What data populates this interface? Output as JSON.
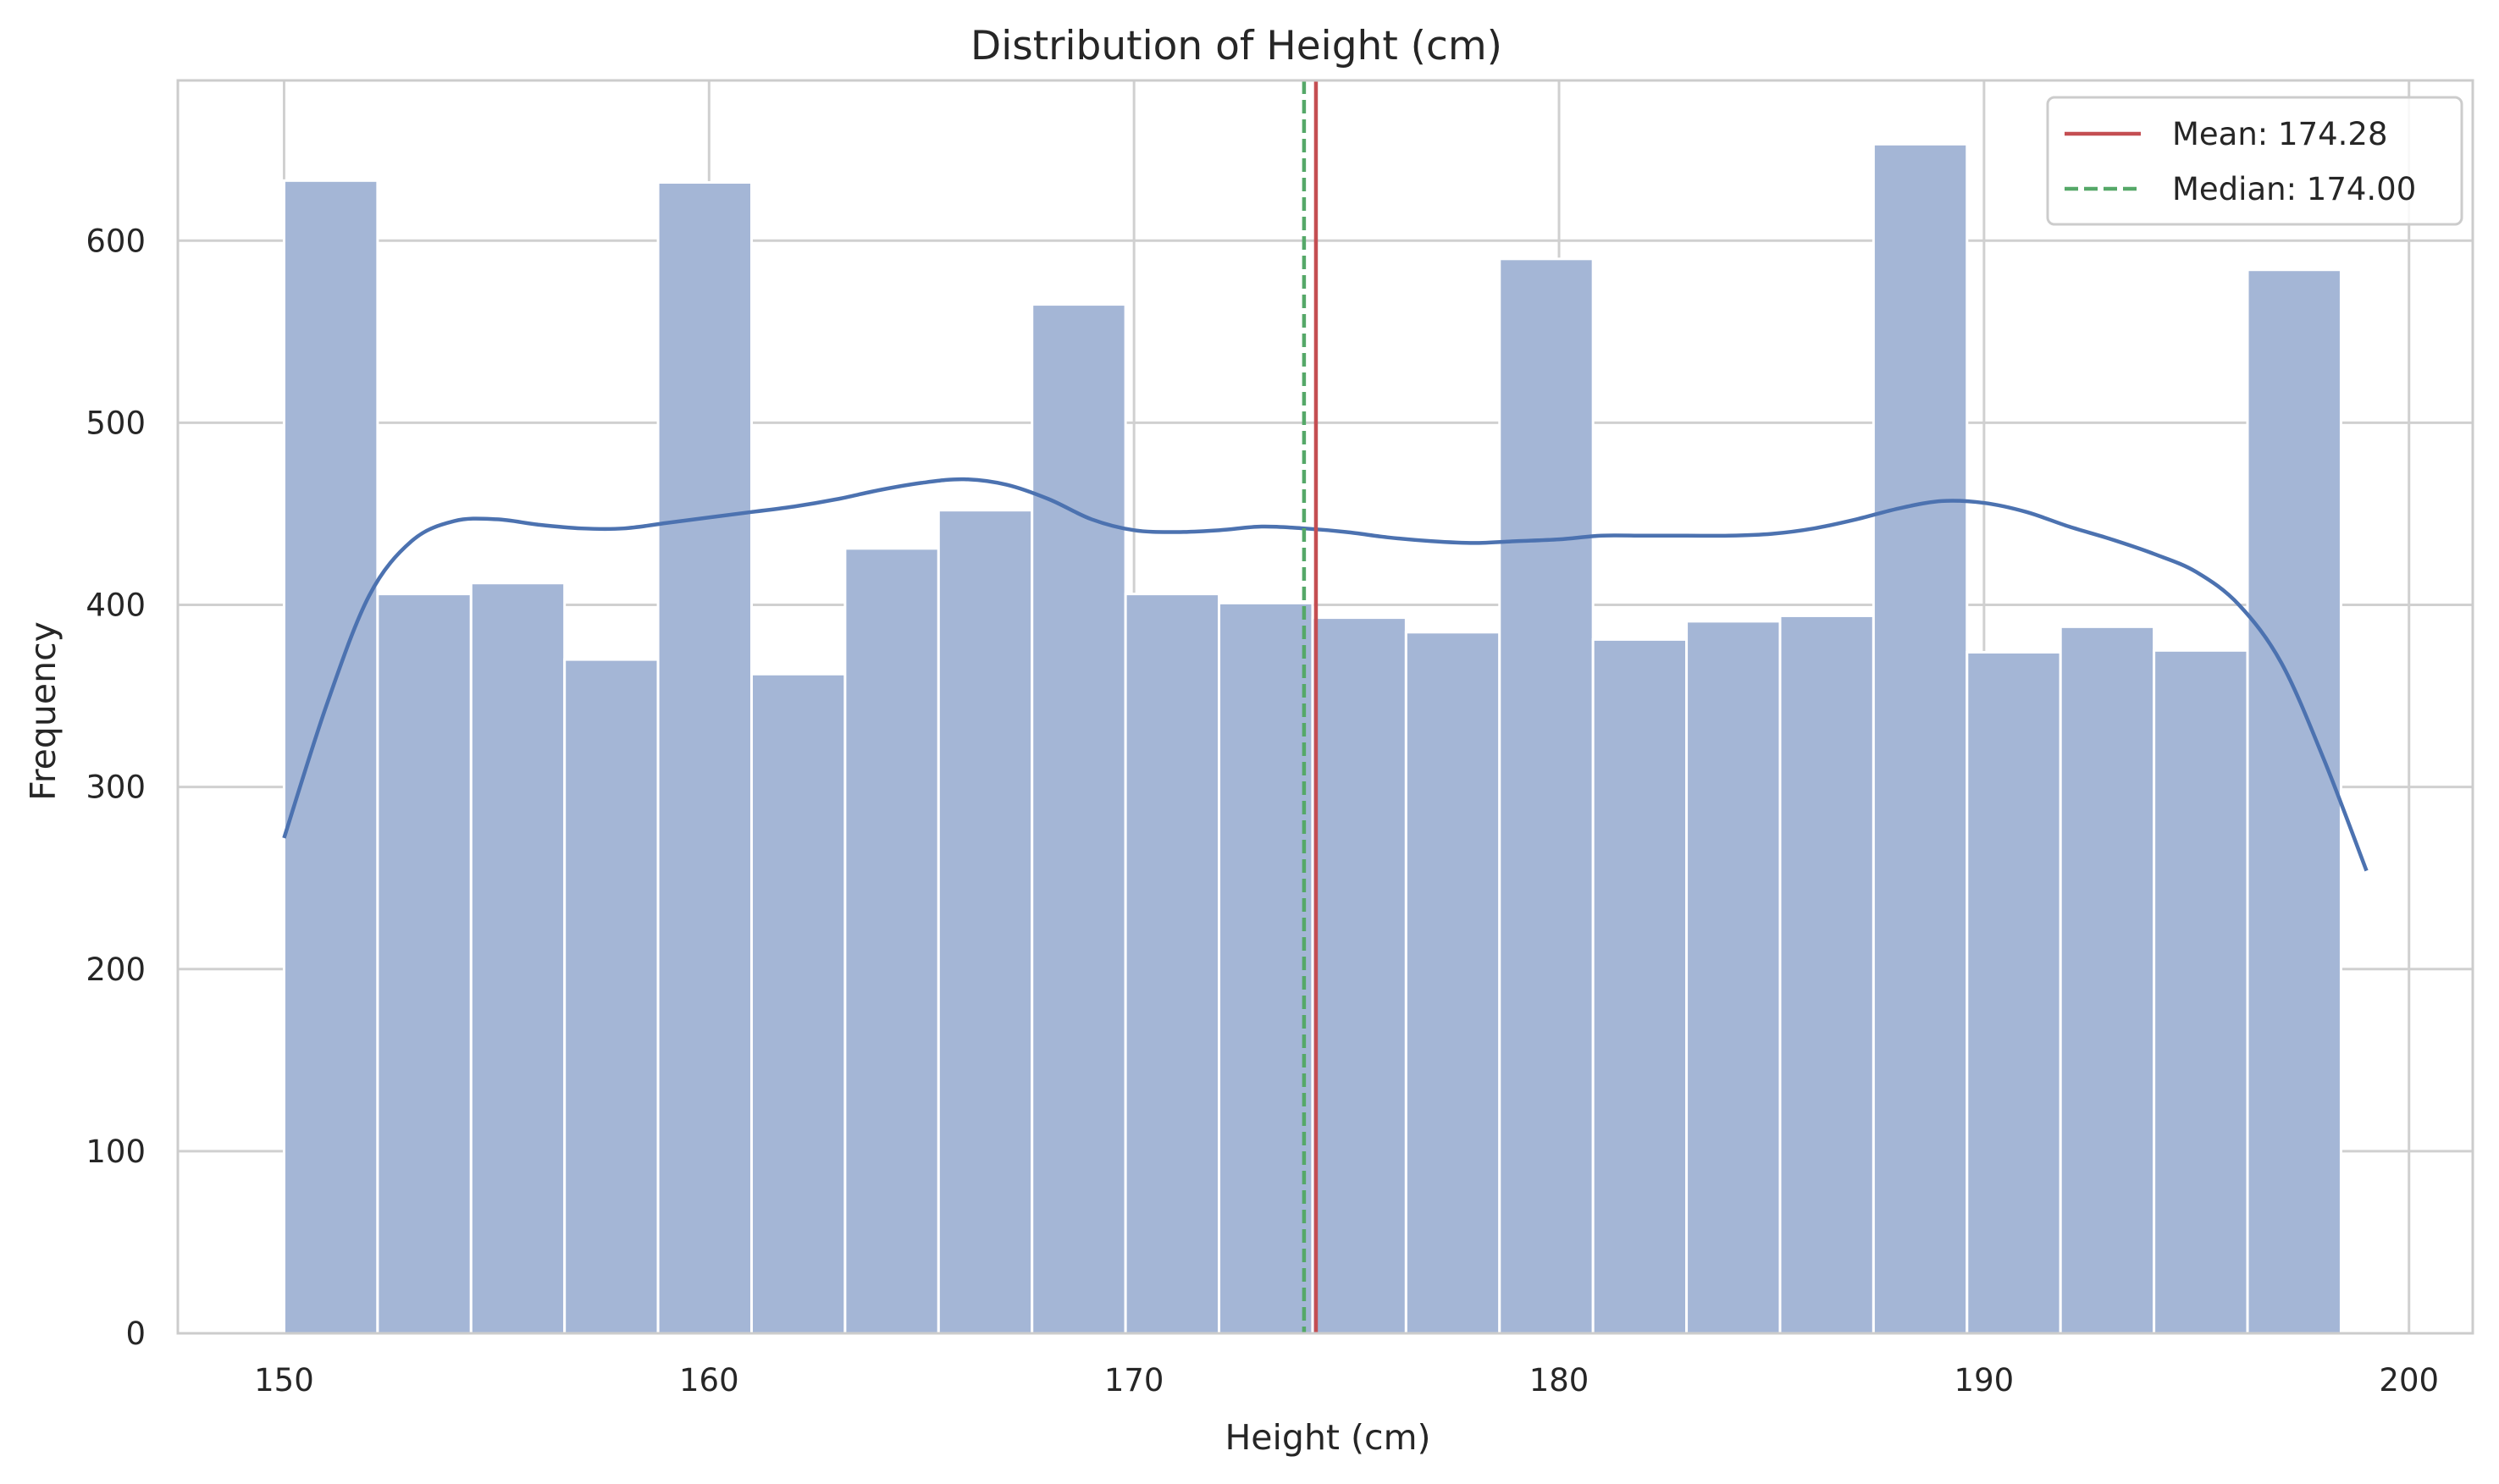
{
  "chart_data": {
    "type": "bar",
    "title": "Distribution of Height (cm)",
    "xlabel": "Height (cm)",
    "ylabel": "Frequency",
    "xlim": [
      147.5,
      201.5
    ],
    "ylim": [
      0,
      688
    ],
    "grid": true,
    "legend_position": "top-right",
    "xticks": [
      150,
      160,
      170,
      180,
      190,
      200
    ],
    "yticks": [
      0,
      100,
      200,
      300,
      400,
      500,
      600
    ],
    "bins": {
      "edges": [
        150,
        152.2,
        154.4,
        156.6,
        158.8,
        161.0,
        163.2,
        165.4,
        167.6,
        169.8,
        172.0,
        174.2,
        176.4,
        178.6,
        180.8,
        183.0,
        185.2,
        187.4,
        189.6,
        191.8,
        194.0,
        196.2,
        198.4
      ],
      "counts": [
        633,
        406,
        412,
        370,
        632,
        362,
        431,
        452,
        565,
        406,
        401,
        393,
        385,
        590,
        381,
        391,
        394,
        653,
        374,
        388,
        375,
        584
      ]
    },
    "series": [
      {
        "name": "",
        "kind": "kde",
        "x": [
          150,
          151,
          152,
          153,
          154,
          155,
          156,
          157,
          158,
          159,
          160,
          161,
          162,
          163,
          164,
          165,
          166,
          167,
          168,
          169,
          170,
          171,
          172,
          173,
          174,
          175,
          176,
          177,
          178,
          179,
          180,
          181,
          182,
          183,
          184,
          185,
          186,
          187,
          188,
          189,
          190,
          191,
          192,
          193,
          194,
          195,
          196,
          197,
          198,
          199
        ],
        "y": [
          272,
          345,
          405,
          435,
          446,
          447,
          444,
          442,
          442,
          445,
          448,
          451,
          454,
          458,
          463,
          467,
          469,
          466,
          458,
          447,
          441,
          440,
          441,
          443,
          442,
          440,
          437,
          435,
          434,
          435,
          436,
          438,
          438,
          438,
          438,
          439,
          442,
          447,
          453,
          457,
          456,
          451,
          443,
          436,
          428,
          418,
          400,
          368,
          315,
          254
        ]
      }
    ],
    "reference_lines": [
      {
        "name": "Mean: 174.28",
        "x": 174.28,
        "color": "#c44e52",
        "style": "solid"
      },
      {
        "name": "Median: 174.00",
        "x": 174.0,
        "color": "#55a868",
        "style": "dashed"
      }
    ],
    "colors": {
      "bars": "#a4b6d6",
      "kde": "#4c72b0",
      "grid": "#d0d0d0",
      "spine": "#cccccc"
    }
  }
}
